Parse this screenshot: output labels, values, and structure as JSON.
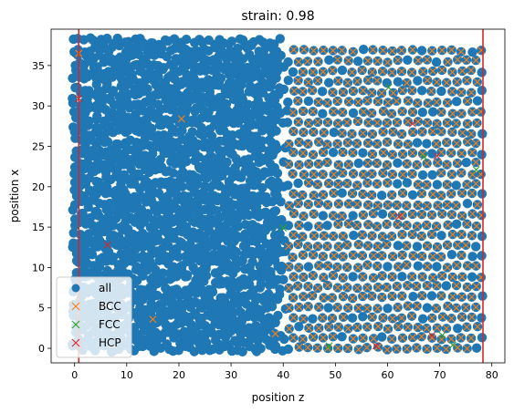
{
  "chart_data": {
    "type": "scatter",
    "title": "strain: 0.98",
    "xlabel": "position z",
    "ylabel": "position x",
    "xlim": [
      -4.5,
      82.5
    ],
    "ylim": [
      -1.8,
      39.5
    ],
    "xticks": [
      0,
      10,
      20,
      30,
      40,
      50,
      60,
      70,
      80
    ],
    "yticks": [
      0,
      5,
      10,
      15,
      20,
      25,
      30,
      35
    ],
    "grid": false,
    "legend_placement": "lower-left",
    "legend": [
      {
        "label": "all",
        "marker": "circle",
        "color": "#1f77b4"
      },
      {
        "label": "BCC",
        "marker": "x",
        "color": "#ff7f0e"
      },
      {
        "label": "FCC",
        "marker": "x",
        "color": "#2ca02c"
      },
      {
        "label": "HCP",
        "marker": "x",
        "color": "#d62728"
      }
    ],
    "vertical_lines": [
      {
        "x": 0.8,
        "color": "#d62728"
      },
      {
        "x": 78.3,
        "color": "#d62728"
      }
    ],
    "series": [
      {
        "name": "all",
        "marker": "circle",
        "color": "#1f77b4",
        "regions": [
          {
            "structure": "dense",
            "x_range": [
              0,
              41
            ],
            "y_range": [
              0,
              38
            ]
          },
          {
            "structure": "lattice",
            "x_range": [
              41,
              79
            ],
            "y_range": [
              0,
              38
            ],
            "x_step": 1.9,
            "y_step": 1.27
          }
        ]
      },
      {
        "name": "BCC",
        "marker": "x",
        "color": "#ff7f0e",
        "points": [
          [
            0.8,
            36.5
          ],
          [
            20.5,
            28.4
          ],
          [
            15.0,
            3.6
          ],
          [
            38.5,
            1.8
          ],
          {
            "region": "lattice",
            "x_range": [
              41,
              78
            ],
            "y_range": [
              0,
              38
            ]
          }
        ]
      },
      {
        "name": "FCC",
        "marker": "x",
        "color": "#2ca02c",
        "points": [
          [
            60.2,
            32.3
          ],
          [
            67.0,
            23.7
          ],
          [
            40.0,
            14.9
          ],
          [
            48.8,
            0.3
          ],
          [
            77.0,
            22.1
          ],
          [
            72.5,
            0.4
          ],
          [
            70.5,
            1.6
          ]
        ]
      },
      {
        "name": "HCP",
        "marker": "x",
        "color": "#d62728",
        "points": [
          [
            0.8,
            30.9
          ],
          [
            6.3,
            12.8
          ],
          [
            64.8,
            27.8
          ],
          [
            69.5,
            23.8
          ],
          [
            62.2,
            16.3
          ],
          [
            57.8,
            0.3
          ],
          [
            68.5,
            1.6
          ],
          [
            0.8,
            0.4
          ]
        ]
      }
    ]
  }
}
